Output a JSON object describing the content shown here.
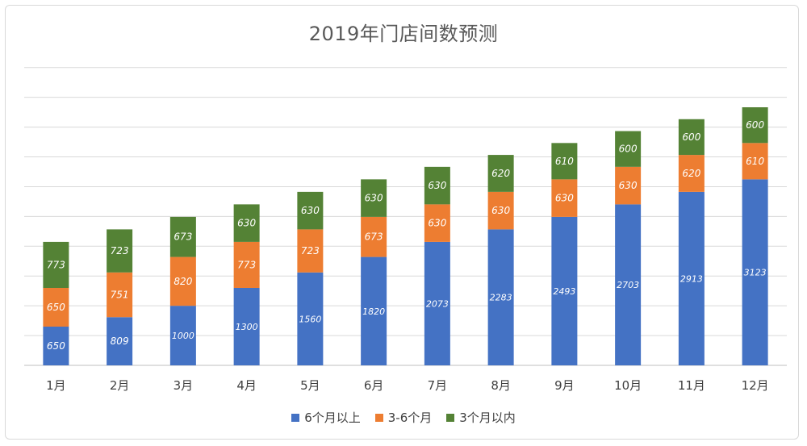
{
  "chart_data": {
    "type": "bar",
    "stacked": true,
    "title": "2019年门店间数预测",
    "xlabel": "",
    "ylabel": "",
    "categories": [
      "1月",
      "2月",
      "3月",
      "4月",
      "5月",
      "6月",
      "7月",
      "8月",
      "9月",
      "10月",
      "11月",
      "12月"
    ],
    "series": [
      {
        "name": "6个月以上",
        "color": "#4472c4",
        "values": [
          650,
          809,
          1000,
          1300,
          1560,
          1820,
          2073,
          2283,
          2493,
          2703,
          2913,
          3123
        ]
      },
      {
        "name": "3-6个月",
        "color": "#ed7d31",
        "values": [
          650,
          751,
          820,
          773,
          723,
          673,
          630,
          630,
          630,
          630,
          620,
          610
        ]
      },
      {
        "name": "3个月以内",
        "color": "#548235",
        "values": [
          773,
          723,
          673,
          630,
          630,
          630,
          630,
          620,
          610,
          600,
          600,
          600
        ]
      }
    ],
    "ylim": [
      0,
      5000
    ],
    "y_gridlines": true,
    "y_tick_labels_shown": false,
    "legend_position": "bottom",
    "data_labels": true
  }
}
